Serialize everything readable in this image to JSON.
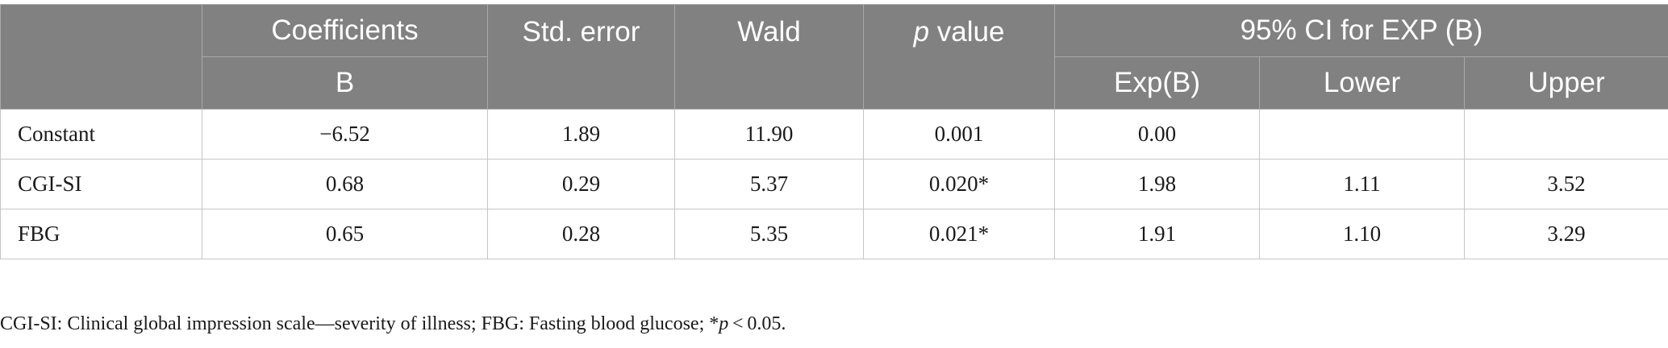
{
  "table": {
    "header": {
      "coefficients": "Coefficients",
      "b": "B",
      "std_error": "Std. error",
      "wald": "Wald",
      "p_letter": "p",
      "p_suffix": " value",
      "ci_group": "95% CI for EXP (B)",
      "exp_b": "Exp(B)",
      "lower": "Lower",
      "upper": "Upper"
    },
    "rows": [
      {
        "label": "Constant",
        "b": "−6.52",
        "se": "1.89",
        "wald": "11.90",
        "p": "0.001",
        "exp_b": "0.00",
        "lower": "",
        "upper": ""
      },
      {
        "label": "CGI-SI",
        "b": "0.68",
        "se": "0.29",
        "wald": "5.37",
        "p": "0.020*",
        "exp_b": "1.98",
        "lower": "1.11",
        "upper": "3.52"
      },
      {
        "label": "FBG",
        "b": "0.65",
        "se": "0.28",
        "wald": "5.35",
        "p": "0.021*",
        "exp_b": "1.91",
        "lower": "1.10",
        "upper": "3.29"
      }
    ]
  },
  "footnote": {
    "text_before": "CGI-SI: Clinical global impression scale—severity of illness; FBG: Fasting blood glucose; *",
    "p_letter": "p",
    "text_after": " < 0.05."
  }
}
